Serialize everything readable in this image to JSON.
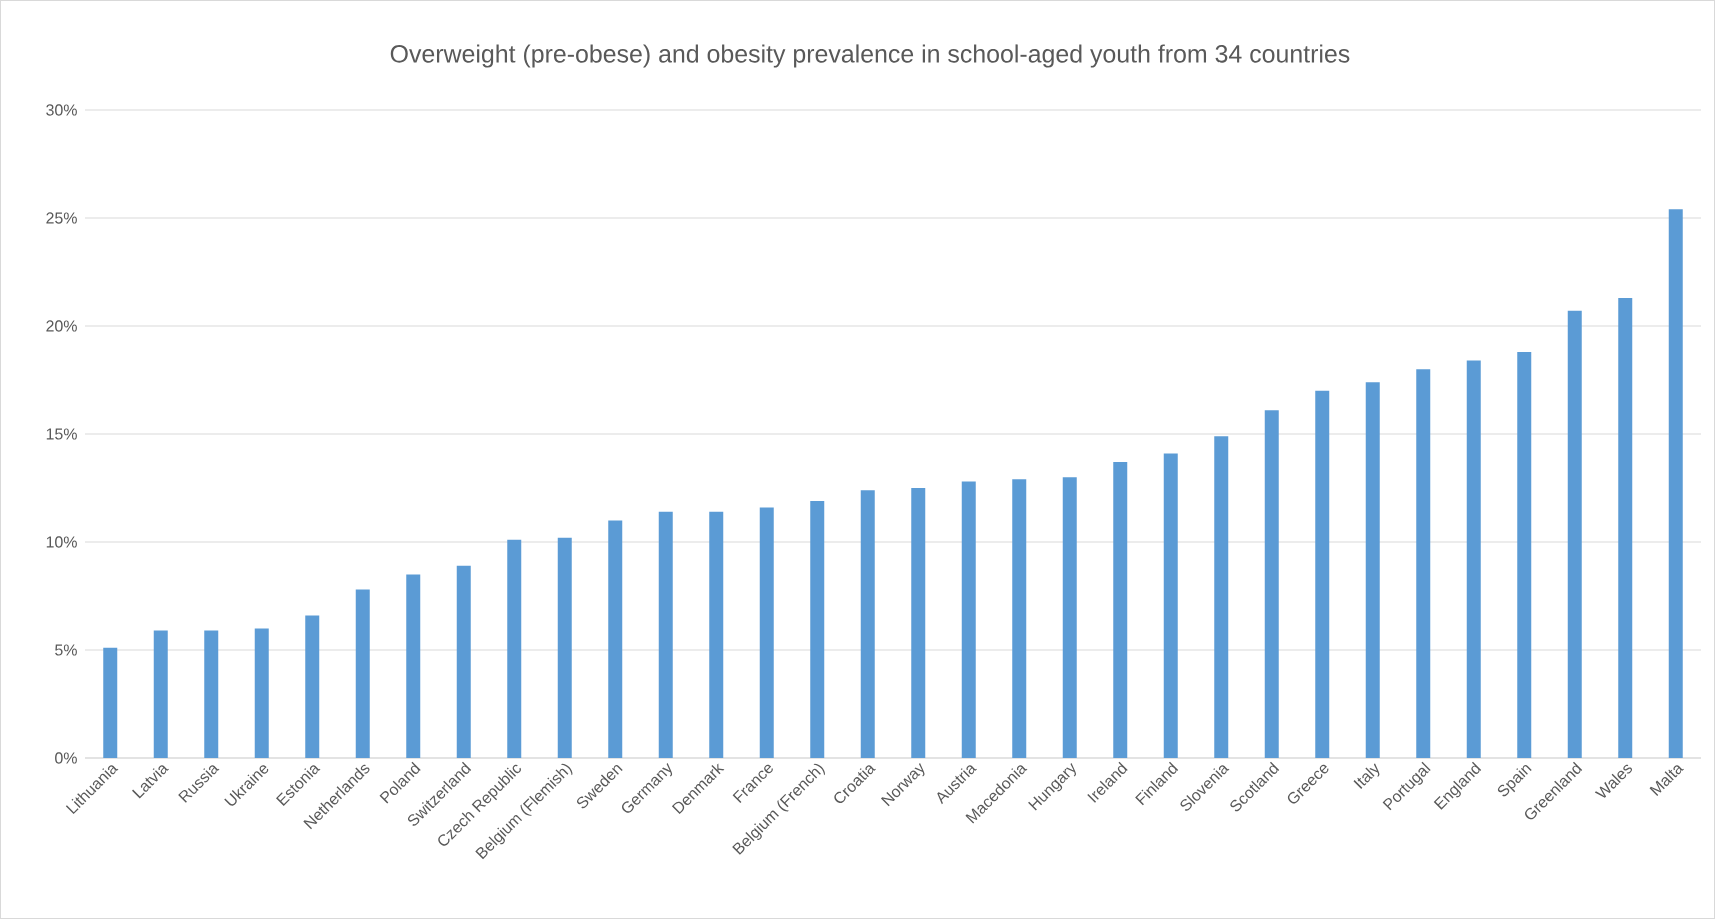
{
  "chart_data": {
    "type": "bar",
    "title": "Overweight (pre-obese) and obesity prevalence in school-aged youth from 34 countries",
    "categories": [
      "Lithuania",
      "Latvia",
      "Russia",
      "Ukraine",
      "Estonia",
      "Netherlands",
      "Poland",
      "Switzerland",
      "Czech Republic",
      "Belgium (Flemish)",
      "Sweden",
      "Germany",
      "Denmark",
      "France",
      "Belgium (French)",
      "Croatia",
      "Norway",
      "Austria",
      "Macedonia",
      "Hungary",
      "Ireland",
      "Finland",
      "Slovenia",
      "Scotland",
      "Greece",
      "Italy",
      "Portugal",
      "England",
      "Spain",
      "Greenland",
      "Wales",
      "Malta"
    ],
    "values": [
      5.1,
      5.9,
      5.9,
      6.0,
      6.6,
      7.8,
      8.5,
      8.9,
      10.1,
      10.2,
      11.0,
      11.4,
      11.4,
      11.6,
      11.9,
      12.4,
      12.5,
      12.8,
      12.9,
      13.0,
      13.7,
      14.1,
      14.9,
      16.1,
      17.0,
      17.4,
      18.0,
      18.4,
      18.8,
      20.7,
      21.3,
      25.4
    ],
    "color": "#5b9bd5",
    "ylim": [
      0,
      30
    ],
    "yticks": [
      {
        "value": 0,
        "label": "0%"
      },
      {
        "value": 5,
        "label": "5%"
      },
      {
        "value": 10,
        "label": "10%"
      },
      {
        "value": 15,
        "label": "15%"
      },
      {
        "value": 20,
        "label": "20%"
      },
      {
        "value": 25,
        "label": "25%"
      },
      {
        "value": 30,
        "label": "30%"
      }
    ],
    "grid": "y"
  }
}
